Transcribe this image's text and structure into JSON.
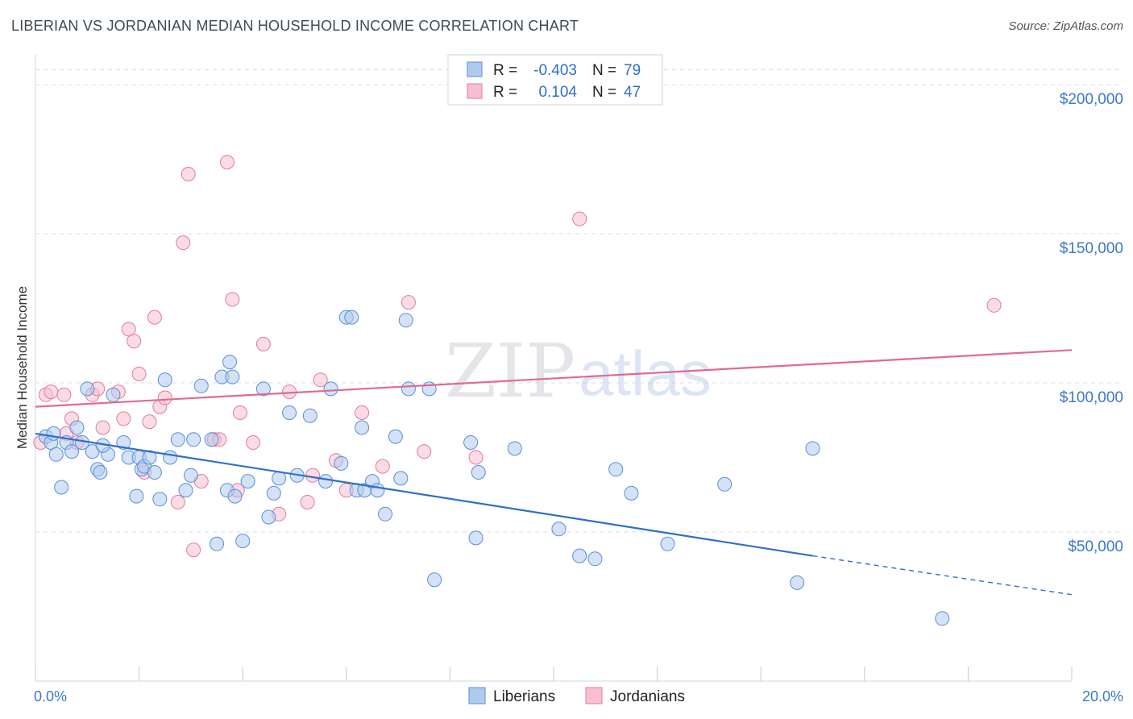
{
  "header": {
    "title": "LIBERIAN VS JORDANIAN MEDIAN HOUSEHOLD INCOME CORRELATION CHART",
    "source": "Source: ZipAtlas.com"
  },
  "watermark": {
    "zip": "ZIP",
    "atlas": "atlas"
  },
  "colors": {
    "liberians_fill": "#aecbef",
    "liberians_stroke": "#5b8fd6",
    "liberians_line": "#2f6fcb",
    "jordanians_fill": "#f7bfd0",
    "jordanians_stroke": "#e07c9c",
    "jordanians_line": "#e06a92",
    "grid": "#d9dde3",
    "tick_label": "#3a78c9"
  },
  "legend_box": {
    "rows": [
      {
        "r_label": "R =",
        "r_value": "-0.403",
        "n_label": "N =",
        "n_value": "79",
        "series": "liberians"
      },
      {
        "r_label": "R =",
        "r_value": "0.104",
        "n_label": "N =",
        "n_value": "47",
        "series": "jordanians"
      }
    ]
  },
  "chart_data": {
    "type": "scatter",
    "title": "LIBERIAN VS JORDANIAN MEDIAN HOUSEHOLD INCOME CORRELATION CHART",
    "xlabel": "",
    "ylabel": "Median Household Income",
    "xlim": [
      0,
      20
    ],
    "ylim": [
      0,
      210000
    ],
    "x_tick_labels": [
      "0.0%",
      "20.0%"
    ],
    "y_ticks": [
      50000,
      100000,
      150000,
      200000
    ],
    "y_tick_labels": [
      "$50,000",
      "$100,000",
      "$150,000",
      "$200,000"
    ],
    "grid": true,
    "legend_placement": "bottom-center",
    "series": [
      {
        "name": "Liberians",
        "trend": {
          "x": [
            0,
            15
          ],
          "y": [
            83000,
            42000
          ],
          "dashed_to": [
            20,
            29000
          ]
        },
        "points": [
          [
            0.2,
            82000
          ],
          [
            0.3,
            80000
          ],
          [
            0.35,
            83000
          ],
          [
            0.5,
            65000
          ],
          [
            0.6,
            80000
          ],
          [
            0.7,
            77000
          ],
          [
            0.8,
            85000
          ],
          [
            0.9,
            80000
          ],
          [
            1.0,
            98000
          ],
          [
            1.1,
            77000
          ],
          [
            1.2,
            71000
          ],
          [
            1.25,
            70000
          ],
          [
            1.4,
            76000
          ],
          [
            1.5,
            96000
          ],
          [
            1.7,
            80000
          ],
          [
            1.8,
            75000
          ],
          [
            1.95,
            62000
          ],
          [
            2.0,
            75000
          ],
          [
            2.05,
            71000
          ],
          [
            2.1,
            72000
          ],
          [
            2.2,
            75000
          ],
          [
            2.4,
            61000
          ],
          [
            2.5,
            101000
          ],
          [
            2.6,
            75000
          ],
          [
            2.75,
            81000
          ],
          [
            2.9,
            64000
          ],
          [
            3.0,
            69000
          ],
          [
            3.05,
            81000
          ],
          [
            3.2,
            99000
          ],
          [
            3.4,
            81000
          ],
          [
            3.5,
            46000
          ],
          [
            3.6,
            102000
          ],
          [
            3.7,
            64000
          ],
          [
            3.75,
            107000
          ],
          [
            3.8,
            102000
          ],
          [
            3.85,
            62000
          ],
          [
            4.0,
            47000
          ],
          [
            4.1,
            67000
          ],
          [
            4.4,
            98000
          ],
          [
            4.5,
            55000
          ],
          [
            4.6,
            63000
          ],
          [
            4.7,
            68000
          ],
          [
            4.9,
            90000
          ],
          [
            5.05,
            69000
          ],
          [
            5.3,
            89000
          ],
          [
            5.7,
            98000
          ],
          [
            5.9,
            73000
          ],
          [
            6.0,
            122000
          ],
          [
            6.1,
            122000
          ],
          [
            6.2,
            64000
          ],
          [
            6.3,
            85000
          ],
          [
            6.35,
            64000
          ],
          [
            6.5,
            67000
          ],
          [
            6.6,
            64000
          ],
          [
            6.75,
            56000
          ],
          [
            6.95,
            82000
          ],
          [
            7.05,
            68000
          ],
          [
            7.15,
            121000
          ],
          [
            7.2,
            98000
          ],
          [
            7.6,
            98000
          ],
          [
            7.7,
            34000
          ],
          [
            8.4,
            80000
          ],
          [
            8.5,
            48000
          ],
          [
            8.55,
            70000
          ],
          [
            9.25,
            78000
          ],
          [
            10.1,
            51000
          ],
          [
            10.5,
            42000
          ],
          [
            10.8,
            41000
          ],
          [
            11.2,
            71000
          ],
          [
            11.5,
            63000
          ],
          [
            12.2,
            46000
          ],
          [
            13.3,
            66000
          ],
          [
            14.7,
            33000
          ],
          [
            15.0,
            78000
          ],
          [
            17.5,
            21000
          ],
          [
            0.4,
            76000
          ],
          [
            1.3,
            79000
          ],
          [
            2.3,
            70000
          ],
          [
            5.6,
            67000
          ]
        ]
      },
      {
        "name": "Jordanians",
        "trend": {
          "x": [
            0,
            20
          ],
          "y": [
            92000,
            111000
          ]
        },
        "points": [
          [
            0.1,
            80000
          ],
          [
            0.2,
            96000
          ],
          [
            0.3,
            97000
          ],
          [
            0.55,
            96000
          ],
          [
            0.6,
            83000
          ],
          [
            0.7,
            88000
          ],
          [
            0.8,
            80000
          ],
          [
            1.1,
            96000
          ],
          [
            1.2,
            98000
          ],
          [
            1.3,
            85000
          ],
          [
            1.6,
            97000
          ],
          [
            1.7,
            88000
          ],
          [
            1.8,
            118000
          ],
          [
            1.9,
            114000
          ],
          [
            2.0,
            103000
          ],
          [
            2.1,
            70000
          ],
          [
            2.2,
            87000
          ],
          [
            2.3,
            122000
          ],
          [
            2.4,
            92000
          ],
          [
            2.5,
            95000
          ],
          [
            2.75,
            60000
          ],
          [
            2.85,
            147000
          ],
          [
            2.95,
            170000
          ],
          [
            3.05,
            44000
          ],
          [
            3.2,
            67000
          ],
          [
            3.45,
            81000
          ],
          [
            3.55,
            81000
          ],
          [
            3.7,
            174000
          ],
          [
            3.8,
            128000
          ],
          [
            3.9,
            64000
          ],
          [
            3.95,
            90000
          ],
          [
            4.2,
            80000
          ],
          [
            4.4,
            113000
          ],
          [
            4.7,
            56000
          ],
          [
            4.9,
            97000
          ],
          [
            5.25,
            60000
          ],
          [
            5.35,
            69000
          ],
          [
            5.5,
            101000
          ],
          [
            5.8,
            74000
          ],
          [
            6.0,
            64000
          ],
          [
            6.3,
            90000
          ],
          [
            6.7,
            72000
          ],
          [
            7.2,
            127000
          ],
          [
            7.5,
            77000
          ],
          [
            8.5,
            75000
          ],
          [
            10.5,
            155000
          ],
          [
            18.5,
            126000
          ]
        ]
      }
    ]
  },
  "bottom_legend": {
    "items": [
      {
        "label": "Liberians",
        "series": "liberians"
      },
      {
        "label": "Jordanians",
        "series": "jordanians"
      }
    ]
  }
}
